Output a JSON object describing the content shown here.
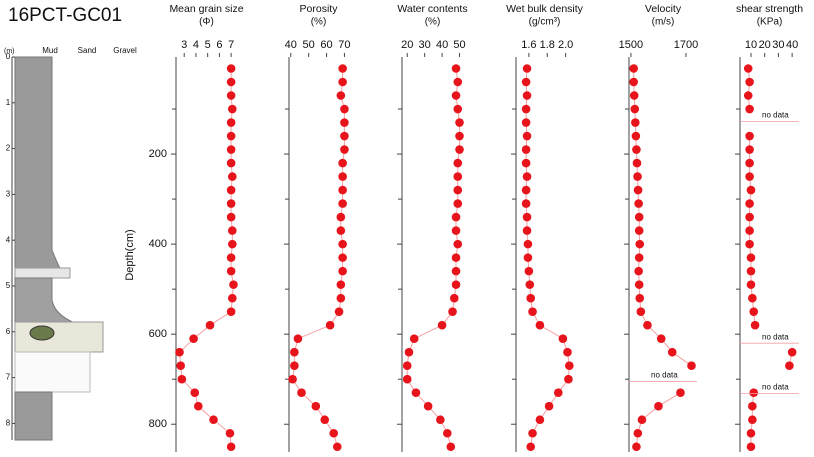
{
  "chart_data": {
    "type": "profile",
    "title": "16PCT-GC01",
    "y_label": "Depth(cm)",
    "core_log": {
      "unit": "(m)",
      "depth_ticks": [
        0,
        1,
        2,
        3,
        4,
        5,
        6,
        7,
        8
      ],
      "columns": [
        "Mud",
        "Sand",
        "Gravel"
      ]
    },
    "depth": [
      10,
      40,
      70,
      100,
      130,
      160,
      190,
      220,
      250,
      280,
      310,
      340,
      370,
      400,
      430,
      460,
      490,
      520,
      550,
      580,
      610,
      640,
      670,
      700,
      730,
      760,
      790,
      820,
      850
    ],
    "ylim": [
      0,
      855
    ],
    "yticks": [
      200,
      400,
      600,
      800
    ],
    "yminorticks": [
      100,
      300,
      500,
      700
    ],
    "color": "#e8141b",
    "line_color": "#f4a0a4",
    "panels": [
      {
        "title": "Mean grain size",
        "unit": "(Φ)",
        "xlim": [
          2.3,
          7.5
        ],
        "xticks": [
          3,
          4,
          5,
          6,
          7
        ],
        "values": [
          7,
          7,
          7,
          7.1,
          7,
          7,
          7,
          7,
          7.1,
          7,
          7,
          7,
          7.1,
          7.1,
          7,
          7,
          7.2,
          7.1,
          7,
          5.2,
          3.8,
          2.6,
          2.7,
          2.8,
          3.9,
          4.2,
          5.5,
          6.9,
          7
        ]
      },
      {
        "title": "Porosity",
        "unit": "(%)",
        "xlim": [
          39,
          72
        ],
        "xticks": [
          40,
          50,
          60,
          70
        ],
        "values": [
          69,
          69,
          68,
          70,
          70,
          70,
          70,
          69,
          69,
          69,
          69,
          68,
          68,
          69,
          69,
          69,
          68,
          68,
          67,
          62,
          44,
          42,
          42,
          41,
          46,
          54,
          59,
          64,
          66
        ]
      },
      {
        "title": "Water contents",
        "unit": "(%)",
        "xlim": [
          17,
          52
        ],
        "xticks": [
          20,
          30,
          40,
          50
        ],
        "values": [
          48,
          49,
          48,
          49,
          50,
          50,
          50,
          49,
          49,
          49,
          49,
          48,
          48,
          49,
          48,
          48,
          48,
          47,
          46,
          40,
          24,
          21,
          20,
          20,
          25,
          32,
          39,
          43,
          45
        ]
      },
      {
        "title": "Wet bulk density",
        "unit": "(g/cm³)",
        "xlim": [
          1.46,
          2.08
        ],
        "xticks": [
          1.6,
          1.8,
          {
            "value": 2,
            "label": "2.0"
          }
        ],
        "values": [
          1.58,
          1.57,
          1.58,
          1.57,
          1.57,
          1.58,
          1.57,
          1.57,
          1.58,
          1.57,
          1.57,
          1.58,
          1.58,
          1.59,
          1.59,
          1.6,
          1.61,
          1.62,
          1.64,
          1.72,
          1.97,
          2.02,
          2.04,
          2.03,
          1.92,
          1.82,
          1.72,
          1.64,
          1.62
        ]
      },
      {
        "title": "Velocity",
        "unit": "(m/s)",
        "xlim": [
          1493,
          1740
        ],
        "xticks": [
          1500,
          1700
        ],
        "values": [
          1510,
          1510,
          1512,
          1514,
          1516,
          1518,
          1520,
          1522,
          1524,
          1526,
          1528,
          1530,
          1530,
          1532,
          1530,
          1528,
          1530,
          1532,
          1536,
          1560,
          1610,
          1650,
          1720,
          null,
          1680,
          1600,
          1540,
          1525,
          1520
        ],
        "annotations": [
          {
            "text": "no data",
            "y": 705
          }
        ]
      },
      {
        "title": "shear strength",
        "unit": "(KPa)",
        "xlim": [
          2,
          45
        ],
        "xticks": [
          10,
          20,
          30,
          40
        ],
        "values": [
          8,
          9,
          8,
          9,
          null,
          9,
          9,
          9,
          9,
          10,
          9,
          9,
          9,
          9,
          10,
          10,
          10,
          11,
          12,
          13,
          null,
          40,
          38,
          null,
          12,
          11,
          11,
          10,
          10
        ],
        "annotations": [
          {
            "text": "no data",
            "y": 128
          },
          {
            "text": "no data",
            "y": 620
          },
          {
            "text": "no data",
            "y": 732
          }
        ]
      }
    ]
  }
}
